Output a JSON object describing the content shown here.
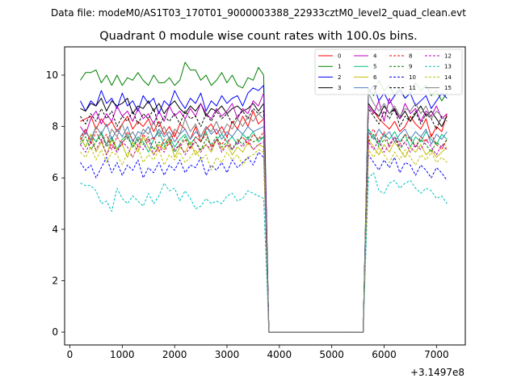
{
  "figure": {
    "suptitle": "Data file: modeM0/AS1T03_170T01_9000003388_22933cztM0_level2_quad_clean.evt",
    "offset_label": "+3.1497e8"
  },
  "chart_data": {
    "type": "line",
    "title": "Quadrant 0 module wise count rates with 100.0s bins.",
    "xlabel": "",
    "ylabel": "",
    "xlim": [
      -100,
      7550
    ],
    "ylim": [
      -0.5,
      11.1
    ],
    "x_ticks": [
      0,
      1000,
      2000,
      3000,
      4000,
      5000,
      6000,
      7000
    ],
    "y_ticks": [
      0,
      2,
      4,
      6,
      8,
      10
    ],
    "x_tick_labels": [
      "0",
      "1000",
      "2000",
      "3000",
      "4000",
      "5000",
      "6000",
      "7000"
    ],
    "y_tick_labels": [
      "0",
      "2",
      "4",
      "6",
      "8",
      "10"
    ],
    "x_offset": 314970000,
    "bin_width_s": 100,
    "x_first": 200,
    "x_step": 100,
    "gap_start": 3800,
    "gap_end": 5600,
    "x_last": 7200,
    "legend_position": "top-right",
    "legend_columns": 4,
    "series": [
      {
        "name": "0",
        "color": "#ff0000",
        "dashed": false,
        "pre": [
          8.2,
          8.3,
          8.4,
          7.9,
          8.3,
          8.0,
          8.2,
          7.8,
          8.1,
          8.4,
          7.9,
          8.2,
          8.0,
          8.3,
          7.8,
          8.2,
          7.7,
          8.0,
          7.6,
          8.1,
          7.9,
          7.5,
          8.0,
          7.4,
          7.9,
          8.1,
          7.7,
          8.0,
          7.6,
          8.2,
          7.9,
          8.4,
          8.0,
          8.6,
          8.1,
          8.3
        ],
        "post": [
          8.9,
          8.6,
          8.3,
          8.1,
          7.9,
          8.2,
          7.8,
          8.0,
          8.4,
          8.1,
          7.9,
          8.3,
          7.6,
          8.0,
          7.8,
          8.5
        ]
      },
      {
        "name": "1",
        "color": "#008000",
        "dashed": false,
        "pre": [
          9.8,
          10.1,
          10.1,
          10.2,
          9.7,
          10.0,
          9.6,
          10.0,
          9.6,
          9.9,
          9.8,
          10.1,
          9.8,
          9.6,
          10.0,
          9.7,
          9.7,
          9.9,
          9.6,
          9.8,
          10.5,
          10.2,
          10.2,
          9.8,
          10.0,
          9.6,
          9.8,
          10.1,
          9.7,
          10.0,
          9.6,
          9.5,
          9.9,
          9.8,
          10.3,
          10.0
        ],
        "post": [
          9.5,
          9.2,
          9.8,
          9.4,
          9.6,
          9.2,
          9.5,
          9.1,
          9.3,
          9.7,
          9.4,
          9.6,
          9.2,
          9.4,
          9.0,
          9.3
        ]
      },
      {
        "name": "2",
        "color": "#0000ff",
        "dashed": false,
        "pre": [
          9.0,
          8.6,
          9.0,
          8.8,
          9.4,
          8.9,
          9.1,
          8.7,
          9.3,
          8.8,
          9.0,
          8.6,
          9.2,
          8.9,
          9.1,
          8.5,
          9.0,
          8.8,
          9.4,
          9.0,
          8.7,
          9.1,
          8.9,
          9.3,
          8.6,
          9.0,
          8.8,
          9.2,
          8.9,
          9.1,
          9.2,
          8.8,
          9.3,
          9.5,
          9.4,
          9.6
        ],
        "post": [
          9.3,
          9.6,
          9.0,
          9.3,
          8.9,
          9.2,
          9.4,
          9.1,
          9.3,
          8.8,
          9.0,
          9.2,
          8.7,
          9.0,
          9.3,
          9.1
        ]
      },
      {
        "name": "3",
        "color": "#000000",
        "dashed": false,
        "pre": [
          8.7,
          8.6,
          8.9,
          8.8,
          9.1,
          8.6,
          9.0,
          8.8,
          8.9,
          9.1,
          8.5,
          8.8,
          8.7,
          9.0,
          8.6,
          8.9,
          8.5,
          8.8,
          9.0,
          8.7,
          8.5,
          8.8,
          8.6,
          8.9,
          8.4,
          8.7,
          8.6,
          8.8,
          8.5,
          8.7,
          8.8,
          8.6,
          8.7,
          8.9,
          8.6,
          8.9
        ],
        "post": [
          8.9,
          8.6,
          8.4,
          8.8,
          8.5,
          8.7,
          8.3,
          8.6,
          8.2,
          8.5,
          8.8,
          8.4,
          8.6,
          8.3,
          8.0,
          8.4
        ]
      },
      {
        "name": "4",
        "color": "#bf00bf",
        "dashed": false,
        "pre": [
          8.0,
          7.7,
          8.3,
          8.6,
          8.1,
          8.5,
          8.2,
          8.8,
          8.4,
          8.6,
          8.2,
          8.7,
          8.3,
          8.5,
          8.1,
          8.6,
          8.2,
          8.8,
          8.4,
          8.6,
          8.3,
          8.7,
          8.4,
          8.9,
          8.5,
          8.3,
          8.7,
          8.4,
          8.6,
          8.9,
          8.3,
          8.7,
          8.5,
          9.0,
          8.8,
          9.3
        ],
        "post": [
          8.8,
          8.5,
          9.0,
          8.2,
          9.1,
          8.6,
          8.3,
          8.9,
          8.5,
          8.7,
          8.2,
          8.6,
          8.4,
          8.8,
          8.3,
          8.5
        ]
      },
      {
        "name": "5",
        "color": "#00bf7f",
        "dashed": false,
        "pre": [
          7.6,
          7.2,
          7.7,
          7.4,
          7.8,
          7.3,
          7.6,
          7.1,
          7.5,
          7.7,
          7.2,
          7.6,
          7.4,
          7.0,
          7.5,
          7.8,
          7.3,
          7.6,
          7.2,
          7.5,
          7.7,
          7.3,
          7.6,
          7.4,
          7.8,
          7.2,
          7.5,
          7.7,
          7.4,
          7.6,
          7.3,
          7.7,
          7.5,
          7.8,
          7.4,
          7.6
        ],
        "post": [
          7.9,
          7.6,
          7.3,
          7.7,
          7.5,
          7.8,
          7.4,
          7.7,
          7.2,
          7.6,
          7.4,
          7.8,
          7.5,
          7.3,
          7.7,
          7.5
        ]
      },
      {
        "name": "6",
        "color": "#bfbf00",
        "dashed": false,
        "pre": [
          7.6,
          7.2,
          7.7,
          7.0,
          7.4,
          6.9,
          7.5,
          7.1,
          7.3,
          6.8,
          7.4,
          7.0,
          7.6,
          7.2,
          6.9,
          7.3,
          7.1,
          7.5,
          6.8,
          7.2,
          7.0,
          7.4,
          6.9,
          7.1,
          7.3,
          7.0,
          7.5,
          7.1,
          7.3,
          6.9,
          7.2,
          7.0,
          7.4,
          7.1,
          7.3,
          7.2
        ],
        "post": [
          7.5,
          7.2,
          6.9,
          7.3,
          7.0,
          7.4,
          7.1,
          6.8,
          7.2,
          7.0,
          7.3,
          6.9,
          7.1,
          6.8,
          7.0,
          7.2
        ]
      },
      {
        "name": "7",
        "color": "#4f7fbf",
        "dashed": false,
        "pre": [
          7.6,
          7.9,
          7.4,
          8.0,
          7.7,
          8.1,
          7.5,
          7.9,
          7.6,
          8.0,
          7.4,
          7.8,
          7.7,
          8.0,
          7.5,
          7.9,
          7.6,
          7.8,
          7.4,
          7.7,
          7.9,
          7.5,
          7.8,
          7.6,
          8.0,
          7.7,
          7.9,
          7.5,
          7.8,
          7.6,
          7.9,
          7.7,
          8.0,
          7.8,
          7.9,
          8.0
        ],
        "post": [
          7.8,
          7.5,
          7.9,
          7.6,
          7.8,
          7.4,
          7.7,
          7.9,
          7.5,
          7.8,
          7.6,
          7.9,
          7.3,
          7.7,
          7.5,
          7.8
        ]
      },
      {
        "name": "8",
        "color": "#ff0000",
        "dashed": true,
        "pre": [
          7.5,
          7.9,
          7.3,
          7.8,
          7.4,
          7.7,
          7.1,
          7.6,
          7.3,
          7.8,
          7.5,
          7.2,
          7.7,
          7.4,
          7.6,
          7.0,
          7.5,
          7.3,
          7.8,
          7.2,
          7.5,
          7.1,
          7.6,
          7.4,
          7.7,
          7.2,
          7.5,
          7.3,
          7.6,
          7.1,
          7.4,
          7.6,
          7.3,
          7.7,
          7.5,
          7.8
        ],
        "post": [
          7.6,
          7.9,
          7.4,
          7.8,
          7.2,
          7.6,
          7.3,
          7.7,
          7.5,
          7.2,
          7.6,
          7.4,
          7.7,
          7.3,
          7.1,
          7.5
        ]
      },
      {
        "name": "9",
        "color": "#008000",
        "dashed": true,
        "pre": [
          7.3,
          7.6,
          7.1,
          7.4,
          7.7,
          7.2,
          7.5,
          7.0,
          7.4,
          7.6,
          7.2,
          7.5,
          7.3,
          7.6,
          7.1,
          7.4,
          7.2,
          7.5,
          7.0,
          7.3,
          7.6,
          7.2,
          7.4,
          7.1,
          7.5,
          7.3,
          7.6,
          7.2,
          7.4,
          7.1,
          7.5,
          7.3,
          7.6,
          7.4,
          7.5,
          7.6
        ],
        "post": [
          7.4,
          7.7,
          7.2,
          7.5,
          7.3,
          7.6,
          7.1,
          7.4,
          7.6,
          7.2,
          7.5,
          7.3,
          7.0,
          7.4,
          7.2,
          7.5
        ]
      },
      {
        "name": "10",
        "color": "#0000ff",
        "dashed": true,
        "pre": [
          6.6,
          6.3,
          6.5,
          6.0,
          6.4,
          6.8,
          6.2,
          6.6,
          6.1,
          6.5,
          6.3,
          6.7,
          6.0,
          6.4,
          6.2,
          6.6,
          6.1,
          6.5,
          6.3,
          6.7,
          6.2,
          6.5,
          6.4,
          6.8,
          6.1,
          6.5,
          6.3,
          6.6,
          6.2,
          6.7,
          6.4,
          6.6,
          6.8,
          6.5,
          7.0,
          6.8
        ],
        "post": [
          6.9,
          6.6,
          6.3,
          6.7,
          6.4,
          6.8,
          6.2,
          6.6,
          6.5,
          6.1,
          6.5,
          6.3,
          6.0,
          6.4,
          6.2,
          5.9
        ]
      },
      {
        "name": "11",
        "color": "#000000",
        "dashed": true,
        "pre": [
          8.4,
          8.1,
          8.5,
          8.2,
          8.7,
          8.3,
          8.6,
          8.0,
          8.4,
          8.2,
          8.6,
          8.1,
          8.5,
          8.3,
          8.7,
          8.0,
          8.4,
          8.2,
          8.5,
          8.1,
          8.6,
          8.3,
          8.4,
          8.0,
          8.5,
          8.2,
          8.6,
          8.3,
          8.5,
          8.1,
          8.4,
          8.6,
          8.3,
          8.7,
          8.5,
          8.6
        ],
        "post": [
          8.7,
          8.4,
          8.1,
          8.6,
          8.3,
          8.7,
          8.0,
          8.4,
          8.2,
          8.6,
          8.1,
          8.5,
          8.3,
          7.9,
          8.4,
          8.2
        ]
      },
      {
        "name": "12",
        "color": "#bf00bf",
        "dashed": true,
        "pre": [
          7.3,
          7.0,
          7.4,
          7.1,
          7.5,
          6.9,
          7.3,
          7.0,
          7.4,
          7.2,
          6.8,
          7.3,
          7.1,
          7.5,
          6.9,
          7.2,
          7.0,
          7.4,
          7.1,
          7.3,
          6.9,
          7.2,
          7.4,
          7.0,
          7.3,
          7.1,
          7.5,
          7.0,
          7.3,
          7.1,
          7.4,
          7.2,
          7.5,
          7.1,
          7.3,
          7.4
        ],
        "post": [
          7.4,
          7.1,
          7.5,
          7.0,
          7.3,
          7.6,
          7.2,
          7.4,
          7.0,
          7.3,
          7.1,
          7.5,
          7.2,
          6.9,
          7.3,
          7.1
        ]
      },
      {
        "name": "13",
        "color": "#00bfbf",
        "dashed": true,
        "pre": [
          5.8,
          5.7,
          5.7,
          5.5,
          5.0,
          5.1,
          4.7,
          5.6,
          5.2,
          5.0,
          5.3,
          5.1,
          4.9,
          5.4,
          5.0,
          5.3,
          5.8,
          5.5,
          5.6,
          5.1,
          5.5,
          5.2,
          4.8,
          4.9,
          5.2,
          5.0,
          5.1,
          5.0,
          5.3,
          5.4,
          5.1,
          5.2,
          5.5,
          5.4,
          5.3,
          5.2
        ],
        "post": [
          6.0,
          6.2,
          5.5,
          5.4,
          5.8,
          5.9,
          5.6,
          5.8,
          5.9,
          5.6,
          5.4,
          5.6,
          5.5,
          5.2,
          5.3,
          5.0
        ]
      },
      {
        "name": "14",
        "color": "#bfbf00",
        "dashed": true,
        "pre": [
          7.0,
          6.8,
          7.2,
          6.7,
          7.1,
          6.6,
          7.0,
          6.9,
          6.5,
          7.0,
          6.8,
          7.2,
          6.6,
          6.9,
          6.7,
          7.1,
          6.5,
          6.9,
          6.7,
          7.0,
          6.6,
          6.8,
          7.1,
          6.7,
          6.9,
          6.3,
          6.8,
          6.6,
          7.0,
          6.7,
          6.9,
          6.5,
          6.8,
          6.9,
          7.1,
          7.0
        ],
        "post": [
          7.1,
          6.8,
          7.2,
          6.9,
          6.6,
          7.0,
          6.7,
          7.1,
          6.8,
          6.5,
          6.9,
          6.7,
          7.0,
          6.6,
          6.8,
          6.6
        ]
      },
      {
        "name": "15",
        "color": "#7f7f7f",
        "dashed": false,
        "pre": [
          7.4,
          7.8,
          7.5,
          8.0,
          7.7,
          7.3,
          7.9,
          7.6,
          8.1,
          7.5,
          7.8,
          7.4,
          7.9,
          7.7,
          8.2,
          7.6,
          8.0,
          7.5,
          7.9,
          7.7,
          8.3,
          7.8,
          8.1,
          7.6,
          8.0,
          7.8,
          8.2,
          7.7,
          8.1,
          7.9,
          8.3,
          8.0,
          8.4,
          8.2,
          8.5,
          8.3
        ],
        "post": [
          9.3,
          8.9,
          8.6,
          8.9,
          8.5,
          8.8,
          8.4,
          8.7,
          8.6,
          8.9,
          8.5,
          8.8,
          8.3,
          8.6,
          8.4,
          8.2
        ]
      }
    ]
  }
}
